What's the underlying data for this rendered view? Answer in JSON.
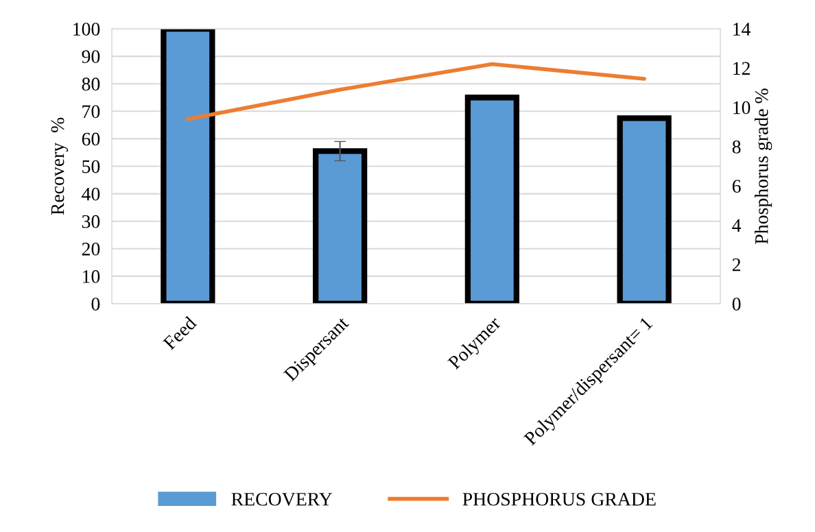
{
  "chart_data": {
    "type": "bar",
    "ylabel": "Recovery  %",
    "y2label": "Phosphorus grade %",
    "categories": [
      "Feed",
      "Dispersant",
      "Polymer",
      "Polymer/dispersant= 1"
    ],
    "series": [
      {
        "name": "RECOVERY",
        "color": "#5b9bd5",
        "values": [
          100,
          55.5,
          75,
          67.5
        ],
        "errors": [
          0,
          3.5,
          null,
          null
        ]
      },
      {
        "name": "PHOSPHORUS GRADE",
        "type": "line",
        "axis": "y2",
        "color": "#ed7d31",
        "values": [
          9.4,
          10.9,
          12.2,
          11.45
        ]
      }
    ],
    "ylim": [
      0,
      100
    ],
    "yticks": [
      0,
      10,
      20,
      30,
      40,
      50,
      60,
      70,
      80,
      90,
      100
    ],
    "y2lim": [
      0,
      14
    ],
    "y2ticks": [
      0,
      2,
      4,
      6,
      8,
      10,
      12,
      14
    ],
    "grid": "y",
    "legend": "bottom",
    "marker": "none",
    "line_style": "solid"
  }
}
